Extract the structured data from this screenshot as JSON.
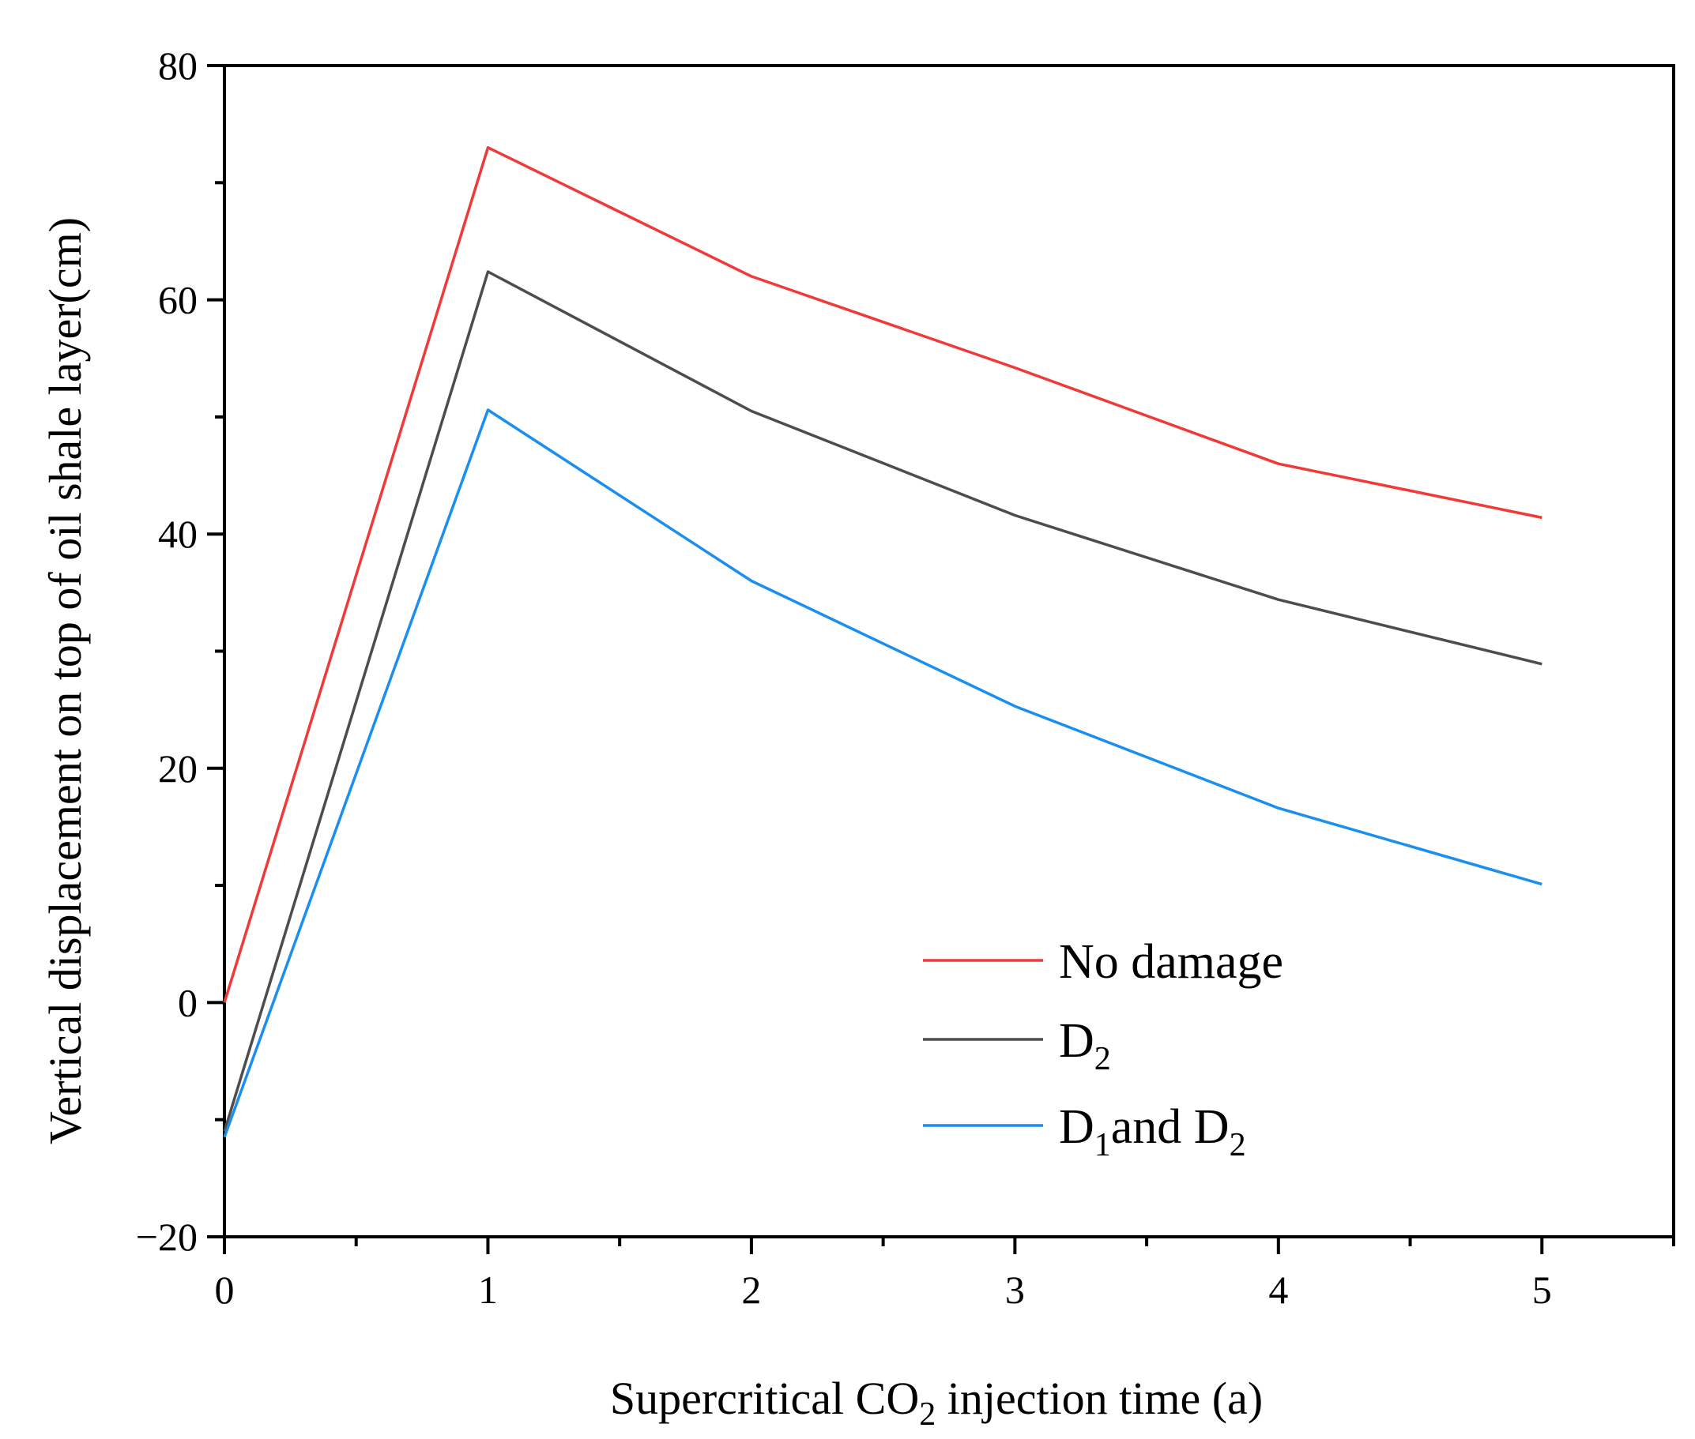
{
  "chart_data": {
    "type": "line",
    "title": "",
    "xlabel": {
      "prefix": "Supercritical CO",
      "subscript": "2",
      "suffix": " injection time (a)"
    },
    "ylabel": "Vertical displacement on top of oil shale layer(cm)",
    "x": [
      0,
      1,
      2,
      3,
      4,
      5
    ],
    "xlim": [
      0,
      5.5
    ],
    "ylim": [
      -20,
      80
    ],
    "xticks": [
      0,
      1,
      2,
      3,
      4,
      5
    ],
    "xtick_labels": [
      "0",
      "1",
      "2",
      "3",
      "4",
      "5"
    ],
    "xminor": [
      0.5,
      1.5,
      2.5,
      3.5,
      4.5,
      5.5
    ],
    "yticks": [
      -20,
      0,
      20,
      40,
      60,
      80
    ],
    "ytick_labels": [
      "−20",
      "0",
      "20",
      "40",
      "60",
      "80"
    ],
    "yminor": [
      -10,
      10,
      30,
      50,
      70
    ],
    "grid": false,
    "legend_position": "bottom-right",
    "series": [
      {
        "name": "No damage",
        "legend_parts": [
          {
            "text": "No damage",
            "sub": false
          }
        ],
        "color": "#f03a3a",
        "values": [
          0,
          73,
          62,
          54.2,
          46,
          41.4
        ]
      },
      {
        "name": "D2",
        "legend_parts": [
          {
            "text": "D",
            "sub": false
          },
          {
            "text": "2",
            "sub": true
          }
        ],
        "color": "#4d4d4d",
        "values": [
          -11,
          62.4,
          50.5,
          41.6,
          34.4,
          28.9
        ]
      },
      {
        "name": "D1 and D2",
        "legend_parts": [
          {
            "text": "D",
            "sub": false
          },
          {
            "text": "1",
            "sub": true
          },
          {
            "text": "and D",
            "sub": false
          },
          {
            "text": "2",
            "sub": true
          }
        ],
        "color": "#1b8ff0",
        "values": [
          -11.5,
          50.6,
          36,
          25.3,
          16.6,
          10.1
        ]
      }
    ]
  }
}
